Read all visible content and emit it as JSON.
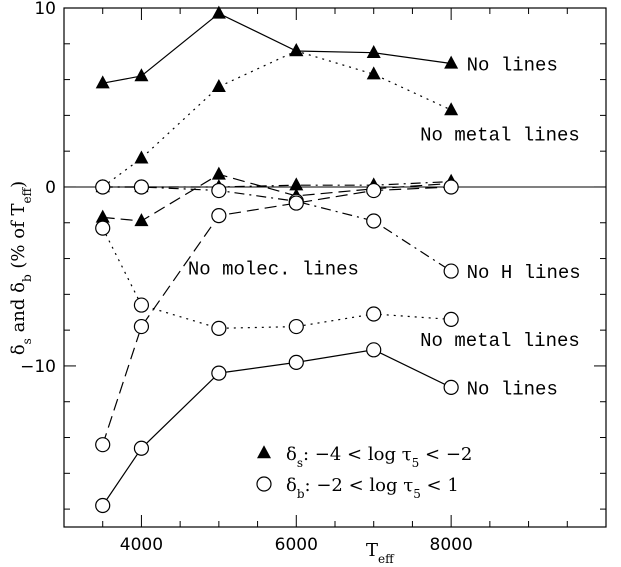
{
  "chart_data": {
    "type": "line",
    "x_label_main": "T",
    "x_label_sub": "eff",
    "y_label_parts": [
      "δ",
      "s",
      " and ",
      "δ",
      "b",
      " (% of T",
      "eff",
      ")"
    ],
    "xlim": [
      3000,
      10000
    ],
    "ylim": [
      -19,
      10
    ],
    "x_ticks": [
      4000,
      6000,
      8000
    ],
    "y_ticks": [
      10,
      0,
      -10
    ],
    "zero_line": true,
    "series": [
      {
        "marker": "triangle",
        "dash": "solid",
        "x": [
          3500,
          4000,
          5000,
          6000,
          7000,
          8000
        ],
        "y": [
          5.8,
          6.2,
          9.7,
          7.6,
          7.5,
          6.9
        ]
      },
      {
        "marker": "triangle",
        "dash": "dot",
        "x": [
          3500,
          4000,
          5000,
          6000,
          7000,
          8000
        ],
        "y": [
          0.0,
          1.6,
          5.6,
          7.6,
          6.3,
          4.3
        ]
      },
      {
        "marker": "triangle",
        "dash": "dashdot",
        "x": [
          3500,
          4000,
          5000,
          6000,
          7000,
          8000
        ],
        "y": [
          0.0,
          0.0,
          0.0,
          0.1,
          0.1,
          0.3
        ]
      },
      {
        "marker": "triangle",
        "dash": "dash",
        "x": [
          3500,
          4000,
          5000,
          6000,
          7000,
          8000
        ],
        "y": [
          -1.7,
          -1.9,
          0.7,
          -0.5,
          -0.1,
          0.2
        ]
      },
      {
        "marker": "circle",
        "dash": "dashdot",
        "x": [
          3500,
          4000,
          5000,
          6000,
          7000,
          8000
        ],
        "y": [
          0.0,
          0.0,
          -0.2,
          -0.8,
          -1.9,
          -4.7
        ]
      },
      {
        "marker": "circle",
        "dash": "dot",
        "x": [
          3500,
          4000,
          5000,
          6000,
          7000,
          8000
        ],
        "y": [
          -2.3,
          -6.6,
          -7.9,
          -7.8,
          -7.1,
          -7.4
        ]
      },
      {
        "marker": "circle",
        "dash": "dash",
        "x": [
          3500,
          4000,
          5000,
          6000,
          7000,
          8000
        ],
        "y": [
          -14.4,
          -7.8,
          -1.6,
          -0.9,
          -0.2,
          0.0
        ]
      },
      {
        "marker": "circle",
        "dash": "solid",
        "x": [
          3500,
          4000,
          5000,
          6000,
          7000,
          8000
        ],
        "y": [
          -17.8,
          -14.6,
          -10.4,
          -9.8,
          -9.1,
          -11.2
        ]
      }
    ],
    "annotations": [
      {
        "text": "No lines",
        "x": 8200,
        "y": 6.9
      },
      {
        "text": "No metal lines",
        "x": 7600,
        "y": 3.0
      },
      {
        "text": "No molec. lines",
        "x": 4600,
        "y": -4.5
      },
      {
        "text": "No H lines",
        "x": 8200,
        "y": -4.7
      },
      {
        "text": "No metal lines",
        "x": 7600,
        "y": -8.5
      },
      {
        "text": "No lines",
        "x": 8200,
        "y": -11.2
      }
    ],
    "legend": [
      {
        "marker": "triangle",
        "symbol": "δ",
        "sub": "s",
        "text": ": −4 < log τ",
        "sub2": "5",
        "text2": " < −2"
      },
      {
        "marker": "circle",
        "symbol": "δ",
        "sub": "b",
        "text": ": −2 < log τ",
        "sub2": "5",
        "text2": " < 1"
      }
    ],
    "legend_position": "bottom-right"
  }
}
